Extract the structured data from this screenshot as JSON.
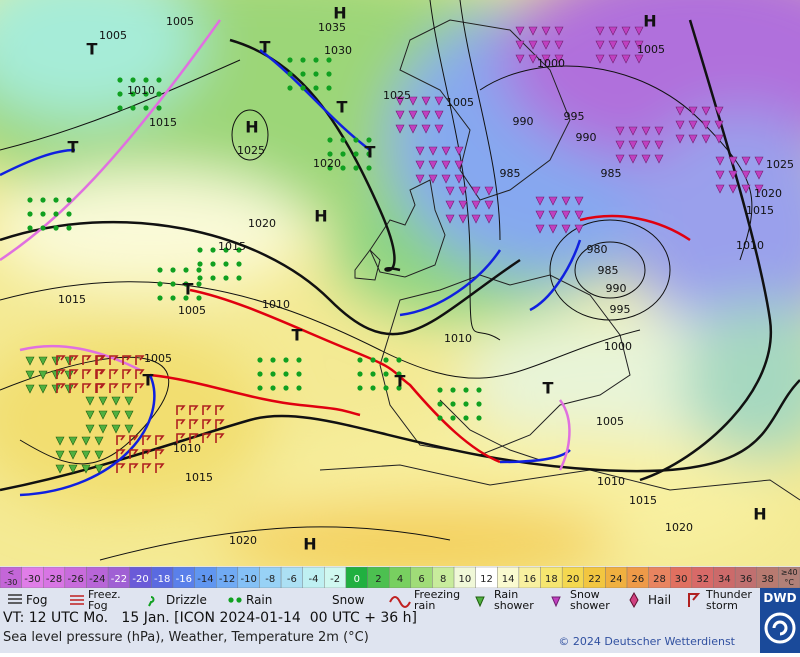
{
  "map": {
    "labels": [
      "1005",
      "1005",
      "H",
      "1035",
      "1030",
      "1025",
      "1005",
      "1000",
      "1005",
      "H",
      "1010",
      "1015",
      "H",
      "1025",
      "1020",
      "990",
      "995",
      "990",
      "985",
      "985",
      "1025",
      "1020",
      "1015",
      "1010",
      "1020",
      "H",
      "1015",
      "1015",
      "1005",
      "1010",
      "980",
      "985",
      "990",
      "995",
      "1000",
      "1010",
      "1005",
      "1010",
      "1015",
      "1005",
      "1010",
      "1015",
      "1020",
      "1020",
      "H",
      "H",
      "T",
      "T",
      "T",
      "T",
      "T",
      "T",
      "T",
      "T",
      "T",
      "T"
    ]
  },
  "colorbar": {
    "under": {
      "top": "<",
      "bottom": "-30",
      "color": "#c466d8"
    },
    "steps": [
      {
        "label": "-30",
        "color": "#e07de8"
      },
      {
        "label": "-28",
        "color": "#d875e4"
      },
      {
        "label": "-26",
        "color": "#c86bdc"
      },
      {
        "label": "-24",
        "color": "#b865d8"
      },
      {
        "label": "-22",
        "color": "#a060d4"
      },
      {
        "label": "-20",
        "color": "#6a5ad8"
      },
      {
        "label": "-18",
        "color": "#5a6ae0"
      },
      {
        "label": "-16",
        "color": "#5a80ea"
      },
      {
        "label": "-14",
        "color": "#6096f0"
      },
      {
        "label": "-12",
        "color": "#70aaf4"
      },
      {
        "label": "-10",
        "color": "#84c0f6"
      },
      {
        "label": "-8",
        "color": "#98d2f6"
      },
      {
        "label": "-6",
        "color": "#ace0f4"
      },
      {
        "label": "-4",
        "color": "#bff0f2"
      },
      {
        "label": "-2",
        "color": "#d0f8f0"
      },
      {
        "label": "0",
        "color": "#20b040"
      },
      {
        "label": "2",
        "color": "#4cc050"
      },
      {
        "label": "4",
        "color": "#78d060"
      },
      {
        "label": "6",
        "color": "#a0dc78"
      },
      {
        "label": "8",
        "color": "#c8ec9c"
      },
      {
        "label": "10",
        "color": "#f0f8d8"
      },
      {
        "label": "12",
        "color": "#ffffff"
      },
      {
        "label": "14",
        "color": "#fafad0"
      },
      {
        "label": "16",
        "color": "#f8f0a0"
      },
      {
        "label": "18",
        "color": "#f6e670"
      },
      {
        "label": "20",
        "color": "#f4d850"
      },
      {
        "label": "22",
        "color": "#f2c640"
      },
      {
        "label": "24",
        "color": "#f0b040"
      },
      {
        "label": "26",
        "color": "#ee9a48"
      },
      {
        "label": "28",
        "color": "#e88460"
      },
      {
        "label": "30",
        "color": "#e07060"
      },
      {
        "label": "32",
        "color": "#d86a68"
      },
      {
        "label": "34",
        "color": "#cc6a6a"
      },
      {
        "label": "36",
        "color": "#c07070"
      },
      {
        "label": "38",
        "color": "#b87a70"
      }
    ],
    "over": {
      "top": "≥40",
      "bottom": "°C",
      "color": "#b08078"
    }
  },
  "legend": [
    {
      "lines": [
        "Fog"
      ]
    },
    {
      "lines": [
        "Freez.",
        "Fog"
      ]
    },
    {
      "lines": [
        "Drizzle"
      ]
    },
    {
      "lines": [
        "Rain"
      ]
    },
    {
      "lines": [
        "Snow"
      ]
    },
    {
      "lines": [
        "Freezing",
        "rain"
      ]
    },
    {
      "lines": [
        "Rain",
        "shower"
      ]
    },
    {
      "lines": [
        "Snow",
        "shower"
      ]
    },
    {
      "lines": [
        "Hail"
      ]
    },
    {
      "lines": [
        "Thunder",
        "storm"
      ]
    }
  ],
  "footer": {
    "valid_time": "VT: 12 UTC Mo.   15 Jan. [ICON 2024-01-14  00 UTC + 36 h]",
    "description": "Sea level pressure (hPa), Weather, Temperature 2m (°C)",
    "copyright": "© 2024 Deutscher Wetterdienst",
    "logo": "DWD"
  }
}
